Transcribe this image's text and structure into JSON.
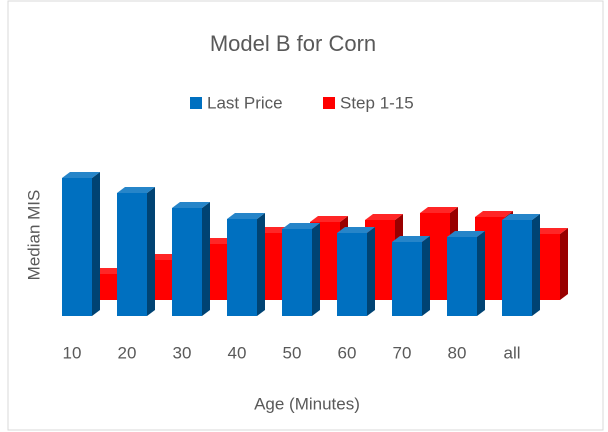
{
  "chart_data": {
    "type": "bar3d",
    "title": "Model B for Corn",
    "x_label": "Age (Minutes)",
    "y_label": "Median MIS",
    "categories": [
      "10",
      "20",
      "30",
      "40",
      "50",
      "60",
      "70",
      "80",
      "all"
    ],
    "series": [
      {
        "name": "Last Price",
        "color": "#0070c0",
        "values": [
          138,
          123,
          108,
          97,
          87,
          83,
          74,
          79,
          96
        ]
      },
      {
        "name": "Step 1-15",
        "color": "#ff0000",
        "values": [
          26,
          40,
          56,
          67,
          78,
          80,
          87,
          83,
          66
        ]
      }
    ],
    "ylim": [
      0,
      150
    ],
    "legend": "top"
  }
}
